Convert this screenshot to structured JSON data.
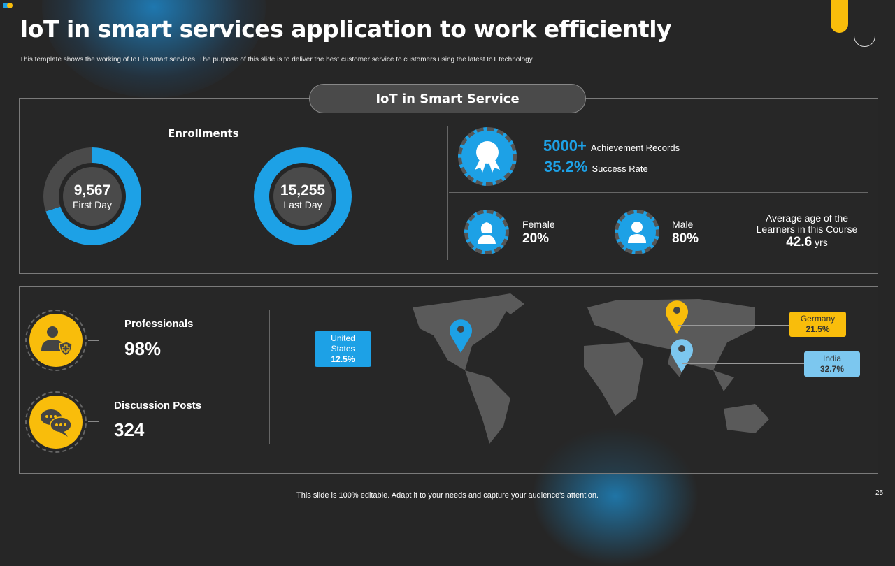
{
  "title": "IoT in smart services application to work efficiently",
  "subtitle": "This template shows the working of IoT in smart services. The purpose of this slide is to deliver the best customer service to customers using the latest IoT  technology",
  "section_title": "IoT in Smart Service",
  "enrollments": {
    "heading": "Enrollments",
    "first": {
      "value": "9,567",
      "label": "First Day",
      "fill_pct": 70
    },
    "last": {
      "value": "15,255",
      "label": "Last Day",
      "fill_pct": 100
    }
  },
  "achievements": {
    "records_value": "5000+",
    "records_label": "Achievement  Records",
    "success_value": "35.2%",
    "success_label": "Success Rate"
  },
  "gender": {
    "female_label": "Female",
    "female_value": "20%",
    "male_label": "Male",
    "male_value": "80%"
  },
  "age": {
    "label_line1": "Average age of the",
    "label_line2": "Learners in this Course",
    "value": "42.6",
    "unit": "yrs"
  },
  "professionals": {
    "label": "Professionals",
    "value": "98%"
  },
  "discussion": {
    "label": "Discussion Posts",
    "value": "324"
  },
  "map_tags": [
    {
      "country": "United States",
      "value": "12.5%",
      "color": "#1da1e6"
    },
    {
      "country": "Germany",
      "value": "21.5%",
      "color": "#f9bd0b"
    },
    {
      "country": "India",
      "value": "32.7%",
      "color": "#7cc7ef"
    }
  ],
  "footer": "This slide is 100% editable.  Adapt it to your needs and capture your audience's attention.",
  "page_number": "25",
  "colors": {
    "blue": "#1da1e6",
    "yellow": "#f9bd0b",
    "bg": "#262626"
  }
}
